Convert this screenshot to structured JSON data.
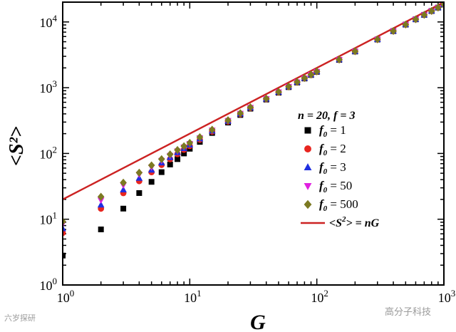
{
  "chart_data": {
    "type": "scatter",
    "xlabel": "G",
    "ylabel": "<S²>",
    "x_scale": "log",
    "y_scale": "log",
    "xlim": [
      1,
      1000
    ],
    "ylim": [
      1,
      20000
    ],
    "x_ticks": [
      {
        "value": 1,
        "base": "10",
        "exp": "0"
      },
      {
        "value": 10,
        "base": "10",
        "exp": "1"
      },
      {
        "value": 100,
        "base": "10",
        "exp": "2"
      },
      {
        "value": 1000,
        "base": "10",
        "exp": "3"
      }
    ],
    "y_ticks": [
      {
        "value": 1,
        "base": "10",
        "exp": "0"
      },
      {
        "value": 10,
        "base": "10",
        "exp": "1"
      },
      {
        "value": 100,
        "base": "10",
        "exp": "2"
      },
      {
        "value": 1000,
        "base": "10",
        "exp": "3"
      },
      {
        "value": 10000,
        "base": "10",
        "exp": "4"
      }
    ],
    "annotation": "n = 20,  f = 3",
    "x": [
      1,
      2,
      3,
      4,
      5,
      6,
      7,
      8,
      9,
      10,
      12,
      15,
      20,
      25,
      30,
      40,
      50,
      60,
      70,
      80,
      90,
      100,
      150,
      200,
      300,
      400,
      500,
      600,
      700,
      800,
      900,
      1000
    ],
    "series": [
      {
        "name": "f0 = 1",
        "label_main": "f",
        "label_sub": "0",
        "label_rest": " = 1",
        "marker": "square",
        "color": "#000000",
        "values": [
          2.8,
          7,
          14.5,
          25,
          37,
          52,
          68,
          82,
          100,
          118,
          150,
          205,
          295,
          385,
          480,
          660,
          840,
          1020,
          1200,
          1380,
          1560,
          1740,
          2650,
          3550,
          5400,
          7250,
          9100,
          10950,
          12800,
          14650,
          16500,
          18350
        ]
      },
      {
        "name": "f0 = 2",
        "label_main": "f",
        "label_sub": "0",
        "label_rest": " = 2",
        "marker": "circle",
        "color": "#e8251f",
        "values": [
          6.2,
          14.5,
          25,
          38,
          52,
          67,
          82,
          98,
          114,
          130,
          162,
          215,
          305,
          395,
          490,
          670,
          850,
          1030,
          1210,
          1390,
          1570,
          1750,
          2660,
          3560,
          5410,
          7260,
          9110,
          10960,
          12810,
          14660,
          16510,
          18360
        ]
      },
      {
        "name": "f0 = 3",
        "label_main": "f",
        "label_sub": "0",
        "label_rest": " = 3",
        "marker": "triangle-up",
        "color": "#1f2fe0",
        "values": [
          7.2,
          16.5,
          28,
          42,
          56,
          72,
          87,
          103,
          119,
          135,
          167,
          220,
          310,
          400,
          495,
          675,
          855,
          1035,
          1215,
          1395,
          1575,
          1755,
          2665,
          3565,
          5415,
          7265,
          9115,
          10965,
          12815,
          14665,
          16515,
          18365
        ]
      },
      {
        "name": "f0 = 50",
        "label_main": "f",
        "label_sub": "0",
        "label_rest": " = 50",
        "marker": "triangle-down",
        "color": "#e020e0",
        "values": [
          8.5,
          19.5,
          33,
          48,
          62,
          78,
          93,
          109,
          125,
          141,
          173,
          226,
          316,
          406,
          500,
          680,
          860,
          1040,
          1220,
          1400,
          1580,
          1760,
          2670,
          3570,
          5420,
          7270,
          9120,
          10970,
          12820,
          14670,
          16520,
          18370
        ]
      },
      {
        "name": "f0 = 500",
        "label_main": "f",
        "label_sub": "0",
        "label_rest": " = 500",
        "marker": "diamond",
        "color": "#7c7a22",
        "values": [
          9.2,
          22,
          36,
          51,
          66,
          82,
          97,
          113,
          129,
          145,
          177,
          230,
          320,
          410,
          504,
          684,
          864,
          1044,
          1224,
          1404,
          1584,
          1764,
          2674,
          3574,
          5424,
          7274,
          9124,
          10974,
          12824,
          14674,
          16524,
          18374
        ]
      }
    ],
    "reference_line": {
      "name": "<S²> = nG",
      "label_left": "<S",
      "label_sup": "2",
      "label_right": "> = nG",
      "color": "#cc2222",
      "coefficient": 20
    }
  },
  "watermark_left": "六岁探研",
  "watermark_right": "高分子科技"
}
